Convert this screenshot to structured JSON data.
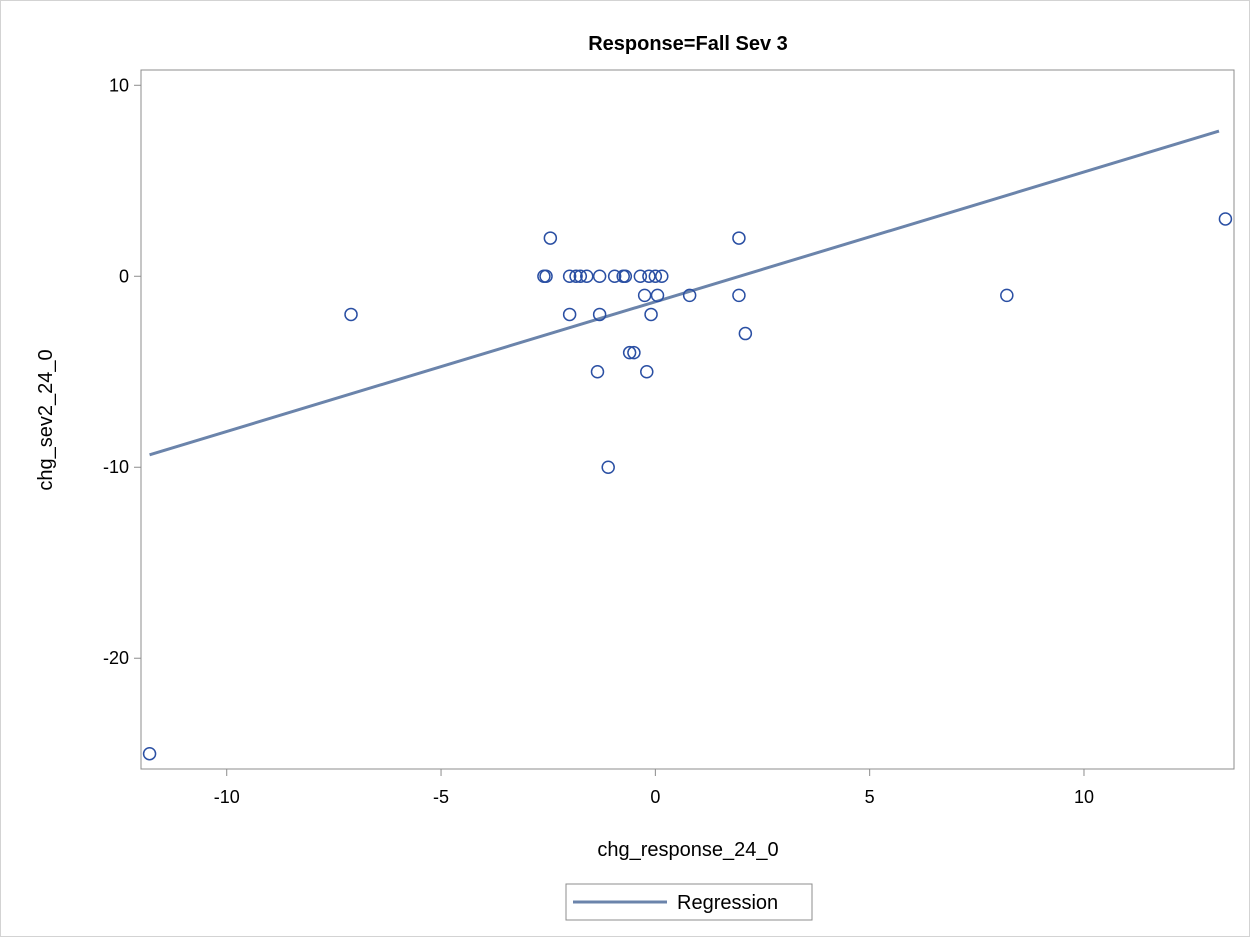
{
  "chart_data": {
    "type": "scatter",
    "title": "Response=Fall Sev 3",
    "xlabel": "chg_response_24_0",
    "ylabel": "chg_sev2_24_0",
    "xlim": [
      -12.0,
      13.5
    ],
    "ylim": [
      -25.8,
      10.8
    ],
    "xticks": [
      -10,
      -5,
      0,
      5,
      10
    ],
    "yticks": [
      10,
      0,
      -10,
      -20
    ],
    "grid": false,
    "legend": {
      "placement": "bottom-center",
      "entries": [
        {
          "label": "Regression"
        }
      ]
    },
    "colors": {
      "markers": "#2a4fa3",
      "regression": "#6b84ab",
      "axes": "#8c8c8c"
    },
    "points": [
      {
        "x": -11.8,
        "y": -25
      },
      {
        "x": -7.1,
        "y": -2
      },
      {
        "x": -2.6,
        "y": 0
      },
      {
        "x": -2.55,
        "y": 0
      },
      {
        "x": -2.45,
        "y": 2
      },
      {
        "x": -2.0,
        "y": 0
      },
      {
        "x": -2.0,
        "y": -2
      },
      {
        "x": -1.85,
        "y": 0
      },
      {
        "x": -1.75,
        "y": 0
      },
      {
        "x": -1.6,
        "y": 0
      },
      {
        "x": -1.35,
        "y": -5
      },
      {
        "x": -1.3,
        "y": 0
      },
      {
        "x": -1.3,
        "y": -2
      },
      {
        "x": -1.1,
        "y": -10
      },
      {
        "x": -0.95,
        "y": 0
      },
      {
        "x": -0.75,
        "y": 0
      },
      {
        "x": -0.7,
        "y": 0
      },
      {
        "x": -0.6,
        "y": -4
      },
      {
        "x": -0.5,
        "y": -4
      },
      {
        "x": -0.35,
        "y": 0
      },
      {
        "x": -0.25,
        "y": -1
      },
      {
        "x": -0.2,
        "y": -5
      },
      {
        "x": -0.15,
        "y": 0
      },
      {
        "x": -0.1,
        "y": -2
      },
      {
        "x": 0.0,
        "y": 0
      },
      {
        "x": 0.05,
        "y": -1
      },
      {
        "x": 0.15,
        "y": 0
      },
      {
        "x": 0.8,
        "y": -1
      },
      {
        "x": 1.95,
        "y": 2
      },
      {
        "x": 1.95,
        "y": -1
      },
      {
        "x": 2.1,
        "y": -3
      },
      {
        "x": 8.2,
        "y": -1
      },
      {
        "x": 13.3,
        "y": 3
      }
    ],
    "regression": {
      "x": [
        -11.8,
        13.15
      ],
      "y": [
        -9.35,
        7.6
      ]
    }
  }
}
